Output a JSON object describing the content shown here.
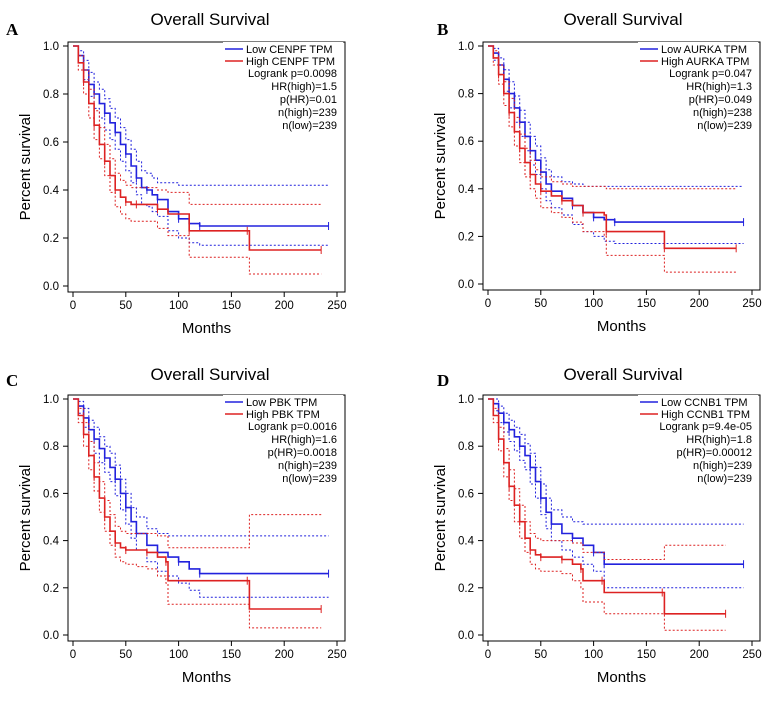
{
  "figure": {
    "panels": [
      {
        "letter": "A",
        "chart_data": {
          "type": "line",
          "title": "Overall Survival",
          "xlabel": "Months",
          "ylabel": "Percent survival",
          "xlim": [
            0,
            250
          ],
          "ylim": [
            0,
            1
          ],
          "xticks": [
            0,
            50,
            100,
            150,
            200,
            250
          ],
          "yticks": [
            0.0,
            0.2,
            0.4,
            0.6,
            0.8,
            1.0
          ],
          "series": [
            {
              "name": "Low CENPF TPM",
              "color": "#2222dd",
              "x": [
                0,
                5,
                10,
                15,
                20,
                25,
                30,
                35,
                40,
                45,
                50,
                55,
                60,
                65,
                70,
                75,
                80,
                90,
                100,
                110,
                120,
                242
              ],
              "y": [
                1.0,
                0.96,
                0.9,
                0.84,
                0.8,
                0.76,
                0.72,
                0.68,
                0.64,
                0.59,
                0.55,
                0.5,
                0.45,
                0.41,
                0.4,
                0.38,
                0.36,
                0.31,
                0.28,
                0.26,
                0.25,
                0.25
              ],
              "ci_upper": [
                1.0,
                0.98,
                0.94,
                0.89,
                0.85,
                0.82,
                0.78,
                0.74,
                0.7,
                0.66,
                0.61,
                0.57,
                0.52,
                0.48,
                0.47,
                0.45,
                0.43,
                0.43,
                0.42,
                0.42,
                0.42,
                0.42
              ],
              "ci_lower": [
                1.0,
                0.93,
                0.86,
                0.79,
                0.74,
                0.7,
                0.65,
                0.61,
                0.57,
                0.52,
                0.48,
                0.43,
                0.38,
                0.34,
                0.33,
                0.31,
                0.29,
                0.23,
                0.2,
                0.18,
                0.17,
                0.17
              ]
            },
            {
              "name": "High CENPF TPM",
              "color": "#dd2222",
              "x": [
                0,
                5,
                10,
                15,
                20,
                25,
                30,
                35,
                40,
                45,
                50,
                55,
                60,
                70,
                80,
                90,
                110,
                130,
                165,
                167,
                235
              ],
              "y": [
                1.0,
                0.93,
                0.85,
                0.76,
                0.67,
                0.59,
                0.52,
                0.46,
                0.4,
                0.37,
                0.35,
                0.34,
                0.34,
                0.34,
                0.32,
                0.3,
                0.23,
                0.23,
                0.23,
                0.15,
                0.15
              ],
              "ci_upper": [
                1.0,
                0.96,
                0.9,
                0.82,
                0.73,
                0.66,
                0.59,
                0.53,
                0.47,
                0.44,
                0.42,
                0.41,
                0.41,
                0.41,
                0.4,
                0.39,
                0.34,
                0.34,
                0.34,
                0.34,
                0.34
              ],
              "ci_lower": [
                1.0,
                0.9,
                0.8,
                0.7,
                0.61,
                0.53,
                0.46,
                0.39,
                0.33,
                0.3,
                0.28,
                0.27,
                0.27,
                0.27,
                0.24,
                0.21,
                0.12,
                0.12,
                0.12,
                0.05,
                0.05
              ]
            }
          ],
          "legend_stats": [
            "Logrank p=0.0098",
            "HR(high)=1.5",
            "p(HR)=0.01",
            "n(high)=239",
            "n(low)=239"
          ]
        }
      },
      {
        "letter": "B",
        "chart_data": {
          "type": "line",
          "title": "Overall Survival",
          "xlabel": "Months",
          "ylabel": "Percent survival",
          "xlim": [
            0,
            250
          ],
          "ylim": [
            0,
            1
          ],
          "xticks": [
            0,
            50,
            100,
            150,
            200,
            250
          ],
          "yticks": [
            0.0,
            0.2,
            0.4,
            0.6,
            0.8,
            1.0
          ],
          "series": [
            {
              "name": "Low AURKA TPM",
              "color": "#2222dd",
              "x": [
                0,
                5,
                10,
                15,
                20,
                25,
                30,
                35,
                40,
                45,
                50,
                55,
                60,
                70,
                80,
                90,
                100,
                110,
                120,
                242
              ],
              "y": [
                1.0,
                0.97,
                0.92,
                0.86,
                0.8,
                0.74,
                0.68,
                0.62,
                0.56,
                0.52,
                0.47,
                0.42,
                0.39,
                0.36,
                0.33,
                0.3,
                0.28,
                0.27,
                0.26,
                0.26
              ],
              "ci_upper": [
                1.0,
                0.99,
                0.95,
                0.9,
                0.85,
                0.79,
                0.73,
                0.68,
                0.62,
                0.58,
                0.53,
                0.48,
                0.45,
                0.43,
                0.42,
                0.41,
                0.41,
                0.41,
                0.41,
                0.41
              ],
              "ci_lower": [
                1.0,
                0.94,
                0.88,
                0.81,
                0.74,
                0.68,
                0.62,
                0.56,
                0.5,
                0.46,
                0.4,
                0.35,
                0.32,
                0.29,
                0.25,
                0.22,
                0.2,
                0.18,
                0.17,
                0.17
              ]
            },
            {
              "name": "High AURKA TPM",
              "color": "#dd2222",
              "x": [
                0,
                5,
                10,
                15,
                20,
                25,
                30,
                35,
                40,
                45,
                50,
                60,
                70,
                80,
                90,
                110,
                112,
                165,
                167,
                235
              ],
              "y": [
                1.0,
                0.95,
                0.88,
                0.8,
                0.72,
                0.64,
                0.57,
                0.51,
                0.46,
                0.42,
                0.39,
                0.37,
                0.35,
                0.33,
                0.3,
                0.29,
                0.22,
                0.22,
                0.15,
                0.15
              ],
              "ci_upper": [
                1.0,
                0.98,
                0.92,
                0.85,
                0.78,
                0.7,
                0.63,
                0.57,
                0.52,
                0.48,
                0.45,
                0.43,
                0.42,
                0.41,
                0.41,
                0.41,
                0.4,
                0.4,
                0.4,
                0.4
              ],
              "ci_lower": [
                1.0,
                0.92,
                0.84,
                0.75,
                0.66,
                0.58,
                0.51,
                0.45,
                0.4,
                0.36,
                0.32,
                0.3,
                0.28,
                0.26,
                0.22,
                0.2,
                0.12,
                0.12,
                0.05,
                0.05
              ]
            }
          ],
          "legend_stats": [
            "Logrank p=0.047",
            "HR(high)=1.3",
            "p(HR)=0.049",
            "n(high)=238",
            "n(low)=239"
          ]
        }
      },
      {
        "letter": "C",
        "chart_data": {
          "type": "line",
          "title": "Overall Survival",
          "xlabel": "Months",
          "ylabel": "Percent survival",
          "xlim": [
            0,
            250
          ],
          "ylim": [
            0,
            1
          ],
          "xticks": [
            0,
            50,
            100,
            150,
            200,
            250
          ],
          "yticks": [
            0.0,
            0.2,
            0.4,
            0.6,
            0.8,
            1.0
          ],
          "series": [
            {
              "name": "Low PBK TPM",
              "color": "#2222dd",
              "x": [
                0,
                5,
                10,
                15,
                20,
                25,
                30,
                35,
                40,
                45,
                50,
                55,
                60,
                70,
                80,
                90,
                100,
                110,
                120,
                242
              ],
              "y": [
                1.0,
                0.97,
                0.92,
                0.87,
                0.83,
                0.79,
                0.75,
                0.71,
                0.66,
                0.6,
                0.54,
                0.48,
                0.43,
                0.38,
                0.35,
                0.33,
                0.31,
                0.28,
                0.26,
                0.26
              ],
              "ci_upper": [
                1.0,
                0.99,
                0.96,
                0.91,
                0.88,
                0.84,
                0.8,
                0.77,
                0.72,
                0.66,
                0.6,
                0.54,
                0.5,
                0.45,
                0.43,
                0.42,
                0.42,
                0.42,
                0.42,
                0.42
              ],
              "ci_lower": [
                1.0,
                0.94,
                0.88,
                0.82,
                0.77,
                0.73,
                0.69,
                0.65,
                0.59,
                0.53,
                0.47,
                0.41,
                0.36,
                0.31,
                0.27,
                0.25,
                0.22,
                0.19,
                0.16,
                0.16
              ]
            },
            {
              "name": "High PBK TPM",
              "color": "#dd2222",
              "x": [
                0,
                5,
                10,
                15,
                20,
                25,
                30,
                35,
                40,
                45,
                50,
                60,
                70,
                80,
                88,
                90,
                165,
                167,
                235
              ],
              "y": [
                1.0,
                0.93,
                0.85,
                0.76,
                0.67,
                0.58,
                0.5,
                0.44,
                0.39,
                0.37,
                0.36,
                0.36,
                0.35,
                0.33,
                0.31,
                0.23,
                0.23,
                0.11,
                0.11
              ],
              "ci_upper": [
                1.0,
                0.96,
                0.9,
                0.82,
                0.73,
                0.65,
                0.57,
                0.51,
                0.46,
                0.44,
                0.43,
                0.43,
                0.43,
                0.42,
                0.42,
                0.37,
                0.37,
                0.51,
                0.51
              ],
              "ci_lower": [
                1.0,
                0.9,
                0.8,
                0.7,
                0.61,
                0.52,
                0.44,
                0.38,
                0.33,
                0.31,
                0.3,
                0.29,
                0.28,
                0.25,
                0.22,
                0.13,
                0.13,
                0.03,
                0.03
              ]
            }
          ],
          "legend_stats": [
            "Logrank p=0.0016",
            "HR(high)=1.6",
            "p(HR)=0.0018",
            "n(high)=239",
            "n(low)=239"
          ]
        }
      },
      {
        "letter": "D",
        "chart_data": {
          "type": "line",
          "title": "Overall Survival",
          "xlabel": "Months",
          "ylabel": "Percent survival",
          "xlim": [
            0,
            250
          ],
          "ylim": [
            0,
            1
          ],
          "xticks": [
            0,
            50,
            100,
            150,
            200,
            250
          ],
          "yticks": [
            0.0,
            0.2,
            0.4,
            0.6,
            0.8,
            1.0
          ],
          "series": [
            {
              "name": "Low CCNB1 TPM",
              "color": "#2222dd",
              "x": [
                0,
                5,
                10,
                15,
                20,
                25,
                30,
                35,
                40,
                45,
                50,
                55,
                60,
                70,
                80,
                90,
                100,
                108,
                110,
                242
              ],
              "y": [
                1.0,
                0.98,
                0.94,
                0.9,
                0.87,
                0.84,
                0.8,
                0.76,
                0.71,
                0.65,
                0.58,
                0.52,
                0.47,
                0.43,
                0.41,
                0.38,
                0.35,
                0.35,
                0.3,
                0.3
              ],
              "ci_upper": [
                1.0,
                1.0,
                0.97,
                0.94,
                0.91,
                0.88,
                0.85,
                0.81,
                0.77,
                0.71,
                0.64,
                0.58,
                0.53,
                0.5,
                0.48,
                0.47,
                0.47,
                0.47,
                0.47,
                0.47
              ],
              "ci_lower": [
                1.0,
                0.95,
                0.9,
                0.86,
                0.82,
                0.78,
                0.74,
                0.7,
                0.64,
                0.58,
                0.51,
                0.45,
                0.4,
                0.36,
                0.33,
                0.3,
                0.27,
                0.27,
                0.2,
                0.2
              ]
            },
            {
              "name": "High CCNB1 TPM",
              "color": "#dd2222",
              "x": [
                0,
                5,
                10,
                15,
                20,
                25,
                30,
                35,
                40,
                45,
                50,
                60,
                70,
                80,
                88,
                90,
                108,
                110,
                165,
                167,
                225
              ],
              "y": [
                1.0,
                0.93,
                0.83,
                0.73,
                0.63,
                0.55,
                0.48,
                0.41,
                0.36,
                0.34,
                0.33,
                0.33,
                0.32,
                0.3,
                0.28,
                0.23,
                0.23,
                0.18,
                0.18,
                0.09,
                0.09
              ],
              "ci_upper": [
                1.0,
                0.96,
                0.88,
                0.79,
                0.7,
                0.62,
                0.55,
                0.48,
                0.43,
                0.41,
                0.4,
                0.4,
                0.4,
                0.39,
                0.39,
                0.35,
                0.35,
                0.32,
                0.32,
                0.38,
                0.38
              ],
              "ci_lower": [
                1.0,
                0.9,
                0.78,
                0.67,
                0.57,
                0.48,
                0.41,
                0.35,
                0.3,
                0.28,
                0.27,
                0.27,
                0.26,
                0.23,
                0.2,
                0.14,
                0.14,
                0.09,
                0.09,
                0.02,
                0.02
              ]
            }
          ],
          "legend_stats": [
            "Logrank p=9.4e-05",
            "HR(high)=1.8",
            "p(HR)=0.00012",
            "n(high)=239",
            "n(low)=239"
          ]
        }
      }
    ]
  },
  "chart_data": [
    {
      "panel": "A",
      "type": "line",
      "title": "Overall Survival"
    },
    {
      "panel": "B",
      "type": "line",
      "title": "Overall Survival"
    },
    {
      "panel": "C",
      "type": "line",
      "title": "Overall Survival"
    },
    {
      "panel": "D",
      "type": "line",
      "title": "Overall Survival"
    }
  ]
}
